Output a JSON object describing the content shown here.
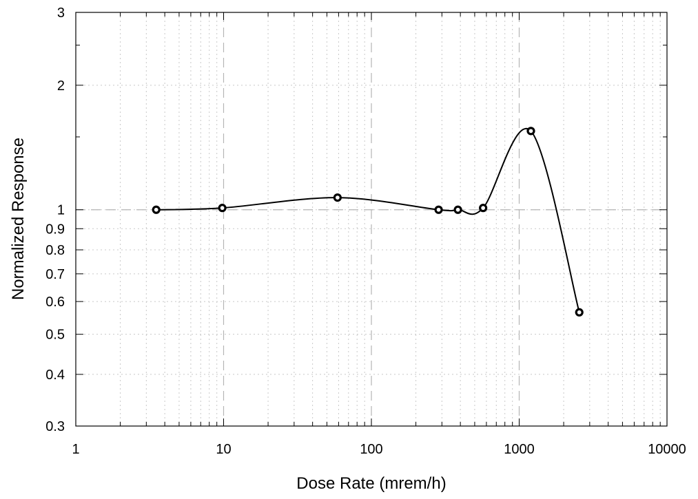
{
  "chart_data": {
    "type": "scatter",
    "xlabel": "Dose Rate (mrem/h)",
    "ylabel": "Normalized Response",
    "x_scale": "log",
    "y_scale": "log",
    "xlim": [
      1,
      10000
    ],
    "ylim": [
      0.3,
      3
    ],
    "x_ticks": [
      "1",
      "10",
      "100",
      "1000",
      "10000"
    ],
    "y_ticks": [
      "0.3",
      "0.4",
      "0.5",
      "0.6",
      "0.7",
      "0.8",
      "0.9",
      "1",
      "2",
      "3"
    ],
    "grid": true,
    "legend": "none",
    "reference_line_y": 1,
    "series": [
      {
        "marker": "open-circle",
        "line": "smooth",
        "color": "#000000",
        "points": [
          {
            "x": 3.5,
            "y": 1.0
          },
          {
            "x": 9.8,
            "y": 1.01
          },
          {
            "x": 59,
            "y": 1.07
          },
          {
            "x": 285,
            "y": 1.0
          },
          {
            "x": 385,
            "y": 1.0
          },
          {
            "x": 570,
            "y": 1.01
          },
          {
            "x": 1200,
            "y": 1.55
          },
          {
            "x": 2550,
            "y": 0.565
          }
        ]
      }
    ]
  }
}
